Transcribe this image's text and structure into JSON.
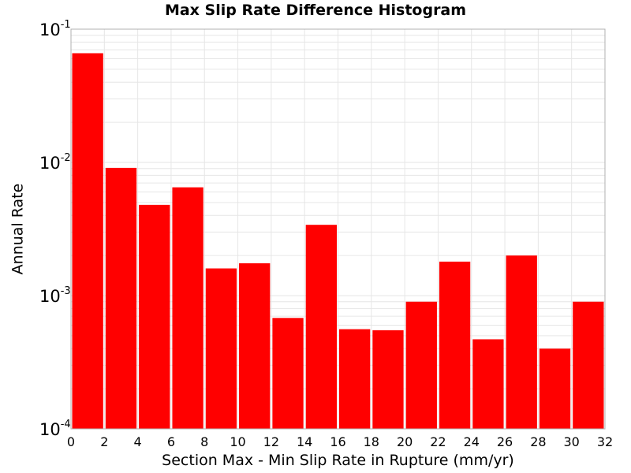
{
  "chart_data": {
    "type": "bar",
    "title": "Max Slip Rate Difference Histogram",
    "xlabel": "Section Max - Min Slip Rate in Rupture (mm/yr)",
    "ylabel": "Annual Rate",
    "xlim": [
      0,
      32
    ],
    "ylim": [
      0.0001,
      0.1
    ],
    "yscale": "log",
    "bin_width": 2,
    "bins": [
      {
        "x": 1,
        "value": 0.066
      },
      {
        "x": 3,
        "value": 0.0091
      },
      {
        "x": 5,
        "value": 0.0048
      },
      {
        "x": 7,
        "value": 0.0065
      },
      {
        "x": 9,
        "value": 0.0016
      },
      {
        "x": 11,
        "value": 0.00175
      },
      {
        "x": 13,
        "value": 0.00068
      },
      {
        "x": 15,
        "value": 0.0034
      },
      {
        "x": 17,
        "value": 0.00056
      },
      {
        "x": 19,
        "value": 0.00055
      },
      {
        "x": 21,
        "value": 0.0009
      },
      {
        "x": 23,
        "value": 0.0018
      },
      {
        "x": 25,
        "value": 0.00047
      },
      {
        "x": 27,
        "value": 0.002
      },
      {
        "x": 29,
        "value": 0.0004
      },
      {
        "x": 31,
        "value": 0.0009
      }
    ],
    "x_ticks": [
      "0",
      "2",
      "4",
      "6",
      "8",
      "10",
      "12",
      "14",
      "16",
      "18",
      "20",
      "22",
      "24",
      "26",
      "28",
      "30",
      "32"
    ],
    "y_ticks": [
      {
        "base": "10",
        "exp": "-4",
        "value": 0.0001
      },
      {
        "base": "10",
        "exp": "-3",
        "value": 0.001
      },
      {
        "base": "10",
        "exp": "-2",
        "value": 0.01
      },
      {
        "base": "10",
        "exp": "-1",
        "value": 0.1
      }
    ],
    "grid": true,
    "colors": {
      "bar": "#ff0000",
      "grid": "#e6e6e6",
      "frame": "#b0b0b0"
    }
  }
}
